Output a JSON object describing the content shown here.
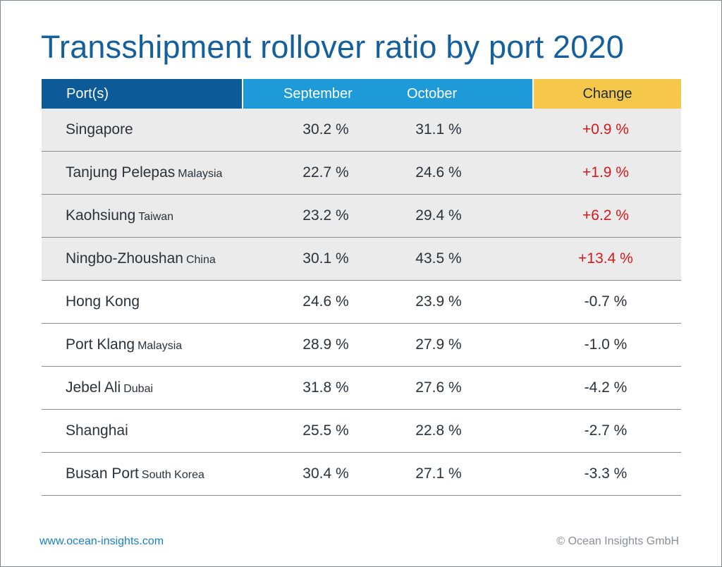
{
  "chart_data": {
    "type": "table",
    "title": "Transshipment rollover ratio by port 2020",
    "columns": [
      "Port(s)",
      "September",
      "October",
      "Change"
    ],
    "rows": [
      {
        "port": "Singapore",
        "country": "",
        "september": "30.2 %",
        "october": "31.1 %",
        "change": "+0.9 %"
      },
      {
        "port": "Tanjung Pelepas",
        "country": "Malaysia",
        "september": "22.7 %",
        "october": "24.6 %",
        "change": "+1.9 %"
      },
      {
        "port": "Kaohsiung",
        "country": "Taiwan",
        "september": "23.2 %",
        "october": "29.4 %",
        "change": "+6.2 %"
      },
      {
        "port": "Ningbo-Zhoushan",
        "country": "China",
        "september": "30.1 %",
        "october": "43.5 %",
        "change": "+13.4 %"
      },
      {
        "port": "Hong Kong",
        "country": "",
        "september": "24.6 %",
        "october": "23.9 %",
        "change": "-0.7 %"
      },
      {
        "port": "Port Klang",
        "country": "Malaysia",
        "september": "28.9 %",
        "october": "27.9 %",
        "change": "-1.0 %"
      },
      {
        "port": "Jebel Ali",
        "country": "Dubai",
        "september": "31.8 %",
        "october": "27.6 %",
        "change": "-4.2 %"
      },
      {
        "port": "Shanghai",
        "country": "",
        "september": "25.5 %",
        "october": "22.8 %",
        "change": "-2.7 %"
      },
      {
        "port": "Busan Port",
        "country": "South Korea",
        "september": "30.4 %",
        "october": "27.1 %",
        "change": "-3.3 %"
      }
    ],
    "shaded_rows": 4,
    "colors": {
      "title": "#155f9c",
      "header_port": "#0c5b98",
      "header_months": "#1e9ad9",
      "header_change": "#f5c84c",
      "row_shade": "#ebebeb",
      "positive_change": "#d7191c"
    }
  },
  "footer": {
    "website": "www.ocean-insights.com",
    "copyright": "© Ocean Insights GmbH"
  }
}
